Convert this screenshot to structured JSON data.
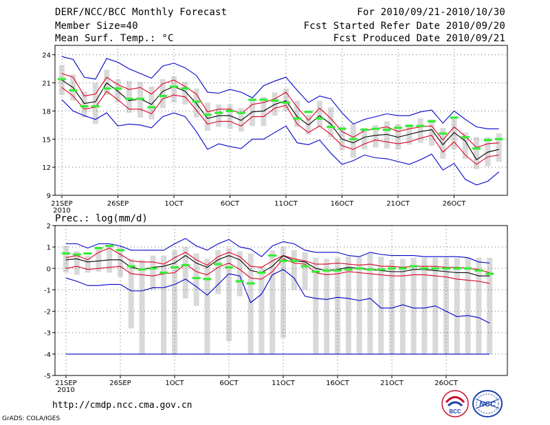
{
  "header": {
    "title": "DERF/NCC/BCC Monthly Forecast",
    "member_size": "Member Size=40",
    "variable": "Mean Surf. Temp.: °C",
    "period": "For 2010/09/21-2010/10/30",
    "started": "Fcst Started Refer Date 2010/09/20",
    "produced": "Fcst Produced Date 2010/09/21"
  },
  "footer": {
    "url": "http://cmdp.ncc.cma.gov.cn",
    "grads": "GrADS: COLA/IGES",
    "logo1_text": "BCC",
    "logo2_text": "NCC"
  },
  "colors": {
    "envelope": "#0000cc",
    "spread": "#dd0022",
    "mean": "#000000",
    "observed": "#33ee33",
    "box": "#d9d9d9",
    "grid": "#666666"
  },
  "chart_data": [
    {
      "type": "box-line",
      "title": "Mean Surf. Temp.: °C",
      "ylim": [
        9,
        25
      ],
      "yticks": [
        9,
        12,
        15,
        18,
        21,
        24
      ],
      "xtick_labels": [
        "21SEP",
        "26SEP",
        "1OCT",
        "6OCT",
        "11OCT",
        "16OCT",
        "21OCT",
        "26OCT"
      ],
      "xtick_days": [
        0,
        5,
        10,
        15,
        20,
        25,
        30,
        35
      ],
      "year_label": "2010",
      "days": 40,
      "series": [
        {
          "name": "upper",
          "values": [
            23.8,
            23.5,
            21.6,
            21.4,
            23.6,
            23.2,
            22.5,
            22.0,
            21.5,
            22.8,
            23.1,
            22.6,
            21.8,
            20.0,
            19.9,
            20.3,
            20.0,
            19.4,
            20.7,
            21.2,
            21.6,
            20.2,
            18.9,
            19.6,
            19.3,
            17.8,
            16.6,
            17.1,
            17.4,
            17.7,
            17.5,
            17.5,
            17.9,
            18.1,
            16.7,
            18.0,
            17.1,
            16.3,
            16.1,
            16.1
          ]
        },
        {
          "name": "spread-upper",
          "values": [
            22.0,
            21.6,
            19.6,
            19.8,
            21.6,
            20.8,
            20.3,
            20.5,
            19.8,
            20.9,
            21.3,
            20.6,
            19.8,
            17.9,
            18.2,
            18.2,
            17.7,
            18.7,
            18.9,
            19.3,
            20.0,
            18.4,
            17.0,
            18.3,
            17.2,
            15.8,
            15.2,
            15.9,
            16.1,
            16.3,
            15.8,
            16.1,
            16.3,
            16.4,
            14.9,
            16.3,
            15.3,
            14.1,
            14.5,
            14.6
          ]
        },
        {
          "name": "mean",
          "values": [
            21.3,
            20.5,
            18.8,
            19.0,
            21.0,
            20.1,
            19.1,
            19.3,
            18.7,
            20.1,
            20.6,
            20.1,
            18.8,
            17.2,
            17.5,
            17.5,
            17.0,
            17.9,
            18.0,
            18.7,
            19.1,
            17.4,
            16.5,
            17.5,
            16.6,
            15.0,
            14.6,
            15.2,
            15.4,
            15.5,
            15.2,
            15.5,
            15.8,
            16.0,
            14.4,
            15.7,
            14.8,
            12.8,
            13.6,
            13.9
          ]
        },
        {
          "name": "spread-lower",
          "values": [
            20.5,
            19.6,
            18.2,
            18.4,
            20.1,
            19.2,
            18.2,
            18.2,
            17.7,
            19.3,
            19.7,
            19.5,
            18.1,
            16.6,
            16.9,
            16.9,
            16.4,
            17.4,
            17.4,
            18.3,
            18.6,
            16.6,
            15.7,
            16.4,
            15.5,
            14.3,
            13.9,
            14.5,
            14.9,
            14.7,
            14.5,
            14.7,
            15.1,
            15.4,
            13.6,
            14.7,
            13.3,
            12.3,
            13.1,
            13.3
          ]
        },
        {
          "name": "lower",
          "values": [
            19.2,
            18.0,
            17.5,
            17.1,
            17.8,
            16.4,
            16.6,
            16.5,
            16.2,
            17.4,
            17.8,
            17.4,
            15.8,
            13.9,
            14.5,
            14.2,
            14.0,
            15.0,
            15.0,
            15.7,
            16.4,
            14.6,
            14.4,
            14.9,
            13.5,
            12.3,
            12.7,
            13.3,
            13.0,
            12.9,
            12.6,
            12.3,
            12.8,
            13.4,
            11.7,
            12.4,
            10.7,
            10.1,
            10.5,
            11.5
          ]
        },
        {
          "name": "box-high",
          "values": [
            22.9,
            21.9,
            20.1,
            21.0,
            22.4,
            21.4,
            21.2,
            21.1,
            20.6,
            21.4,
            21.7,
            21.1,
            20.4,
            18.9,
            18.7,
            18.7,
            18.3,
            19.2,
            19.5,
            20.0,
            20.4,
            19.1,
            17.6,
            19.1,
            18.4,
            16.4,
            16.6,
            16.2,
            16.5,
            16.9,
            16.6,
            16.6,
            17.2,
            17.1,
            16.2,
            17.2,
            15.7,
            15.2,
            15.2,
            15.6
          ]
        },
        {
          "name": "box-low",
          "values": [
            19.7,
            19.1,
            17.3,
            16.6,
            19.7,
            18.9,
            17.8,
            17.3,
            17.1,
            18.3,
            18.9,
            18.7,
            17.3,
            15.9,
            16.3,
            16.1,
            15.8,
            16.4,
            16.4,
            17.5,
            18.0,
            16.3,
            15.5,
            16.3,
            15.2,
            13.8,
            13.0,
            13.9,
            14.1,
            14.0,
            13.9,
            14.4,
            14.6,
            14.3,
            12.9,
            13.9,
            12.9,
            11.8,
            12.1,
            12.6
          ]
        },
        {
          "name": "observed",
          "values": [
            21.4,
            20.2,
            18.5,
            18.5,
            20.4,
            20.4,
            19.3,
            19.3,
            18.4,
            19.6,
            20.6,
            20.4,
            19.0,
            17.6,
            17.8,
            18.0,
            17.8,
            19.2,
            19.2,
            19.1,
            18.9,
            17.2,
            17.9,
            17.2,
            16.3,
            16.1,
            15.0,
            16.0,
            16.1,
            16.0,
            16.2,
            16.4,
            16.4,
            16.9,
            15.6,
            17.3,
            15.2,
            14.0,
            14.9,
            15.0
          ]
        }
      ]
    },
    {
      "type": "box-line",
      "title": "Prec.: log(mm/d)",
      "ylim": [
        -5,
        2
      ],
      "yticks": [
        -5,
        -4,
        -3,
        -2,
        -1,
        0,
        1,
        2
      ],
      "xtick_labels": [
        "21SEP",
        "26SEP",
        "1OCT",
        "6OCT",
        "11OCT",
        "16OCT",
        "21OCT",
        "26OCT"
      ],
      "xtick_days": [
        0,
        5,
        10,
        15,
        20,
        25,
        30,
        35
      ],
      "year_label": "2010",
      "days": 40,
      "series": [
        {
          "name": "upper",
          "values": [
            1.15,
            1.15,
            0.95,
            1.15,
            1.15,
            1.05,
            0.85,
            0.85,
            0.85,
            0.85,
            1.15,
            1.4,
            1.05,
            0.85,
            1.15,
            1.35,
            1.0,
            0.9,
            0.55,
            1.05,
            1.25,
            1.15,
            0.85,
            0.75,
            0.75,
            0.75,
            0.6,
            0.55,
            0.75,
            0.65,
            0.6,
            0.6,
            0.6,
            0.55,
            0.55,
            0.55,
            0.55,
            0.5,
            0.3,
            0.25
          ]
        },
        {
          "name": "spread-upper",
          "values": [
            0.5,
            0.6,
            0.4,
            0.75,
            0.95,
            0.65,
            0.35,
            0.3,
            0.3,
            0.2,
            0.5,
            0.75,
            0.4,
            0.15,
            0.55,
            0.75,
            0.55,
            0.1,
            0.05,
            0.35,
            0.6,
            0.45,
            0.35,
            0.2,
            0.2,
            0.25,
            0.2,
            0.15,
            0.2,
            0.1,
            0.1,
            0.05,
            0.1,
            0.1,
            0.1,
            0.05,
            0.05,
            0.0,
            -0.05,
            -0.2
          ]
        },
        {
          "name": "mean",
          "values": [
            0.4,
            0.45,
            0.3,
            0.35,
            0.4,
            0.4,
            0.05,
            -0.05,
            0.05,
            0.1,
            0.25,
            0.6,
            0.25,
            0.05,
            0.4,
            0.6,
            0.4,
            -0.1,
            -0.2,
            0.1,
            0.6,
            0.35,
            0.3,
            0.0,
            -0.1,
            -0.05,
            0.05,
            0.0,
            -0.05,
            -0.1,
            -0.15,
            -0.15,
            -0.05,
            -0.05,
            -0.1,
            -0.15,
            -0.2,
            -0.2,
            -0.35,
            -0.35
          ]
        },
        {
          "name": "spread-lower",
          "values": [
            0.0,
            0.1,
            -0.05,
            0.0,
            0.05,
            0.1,
            -0.25,
            -0.3,
            -0.35,
            -0.25,
            -0.2,
            0.2,
            -0.15,
            -0.3,
            0.05,
            0.25,
            -0.05,
            -0.45,
            -0.5,
            -0.15,
            0.45,
            0.25,
            0.2,
            -0.2,
            -0.3,
            -0.25,
            -0.15,
            -0.2,
            -0.25,
            -0.3,
            -0.35,
            -0.35,
            -0.3,
            -0.3,
            -0.35,
            -0.4,
            -0.5,
            -0.55,
            -0.6,
            -0.7
          ]
        },
        {
          "name": "lower",
          "values": [
            -0.45,
            -0.6,
            -0.8,
            -0.8,
            -0.75,
            -0.75,
            -1.05,
            -1.05,
            -0.9,
            -0.9,
            -0.75,
            -0.5,
            -0.85,
            -1.25,
            -0.75,
            -0.25,
            -0.35,
            -1.6,
            -1.2,
            -0.3,
            -0.05,
            -0.45,
            -1.3,
            -1.4,
            -1.45,
            -1.35,
            -1.4,
            -1.5,
            -1.4,
            -1.85,
            -1.85,
            -1.7,
            -1.85,
            -1.85,
            -1.75,
            -2.0,
            -2.25,
            -2.2,
            -2.3,
            -2.55
          ]
        },
        {
          "name": "box-high",
          "values": [
            1.05,
            0.8,
            0.6,
            1.0,
            1.0,
            1.0,
            0.45,
            0.4,
            0.6,
            0.6,
            0.85,
            1.0,
            0.7,
            0.45,
            0.85,
            0.95,
            0.8,
            0.7,
            0.1,
            0.85,
            1.0,
            0.85,
            0.75,
            0.5,
            0.45,
            0.5,
            0.55,
            0.55,
            0.7,
            0.55,
            0.4,
            0.45,
            0.5,
            0.5,
            0.5,
            0.5,
            0.5,
            0.5,
            0.5,
            0.5
          ]
        },
        {
          "name": "box-low",
          "values": [
            -0.2,
            -0.3,
            -0.2,
            -0.15,
            -0.2,
            -0.4,
            -2.8,
            -4.0,
            -1.0,
            -4.0,
            -4.0,
            -1.4,
            -1.75,
            -4.0,
            -1.2,
            -3.4,
            -1.3,
            -4.0,
            -4.0,
            -4.0,
            -3.25,
            -1.0,
            -1.0,
            -4.0,
            -4.0,
            -4.0,
            -4.0,
            -4.0,
            -4.0,
            -4.0,
            -4.0,
            -4.0,
            -4.0,
            -4.0,
            -4.0,
            -4.0,
            -4.0,
            -4.0,
            -4.0,
            -4.0
          ]
        },
        {
          "name": "observed",
          "values": [
            0.7,
            0.65,
            0.7,
            0.95,
            1.05,
            0.85,
            0.1,
            -0.05,
            0.0,
            -0.2,
            0.05,
            0.15,
            -0.45,
            -0.5,
            0.2,
            0.05,
            -0.6,
            -0.7,
            -0.2,
            0.6,
            0.35,
            0.35,
            0.1,
            -0.15,
            -0.1,
            -0.1,
            -0.05,
            0.0,
            -0.05,
            -0.05,
            0.0,
            0.0,
            0.1,
            0.0,
            0.0,
            0.0,
            0.0,
            0.0,
            -0.1,
            -0.25
          ]
        },
        {
          "name": "floor",
          "values": [
            -4.0,
            -4.0,
            -4.0,
            -4.0,
            -4.0,
            -4.0,
            -4.0,
            -4.0,
            -4.0,
            -4.0,
            -4.0,
            -4.0,
            -4.0,
            -4.0,
            -4.0,
            -4.0,
            -4.0,
            -4.0,
            -4.0,
            -4.0,
            -4.0,
            -4.0,
            -4.0,
            -4.0,
            -4.0,
            -4.0,
            -4.0,
            -4.0,
            -4.0,
            -4.0,
            -4.0,
            -4.0,
            -4.0,
            -4.0,
            -4.0,
            -4.0,
            -4.0,
            -4.0,
            -4.0,
            -4.0
          ]
        }
      ]
    }
  ]
}
